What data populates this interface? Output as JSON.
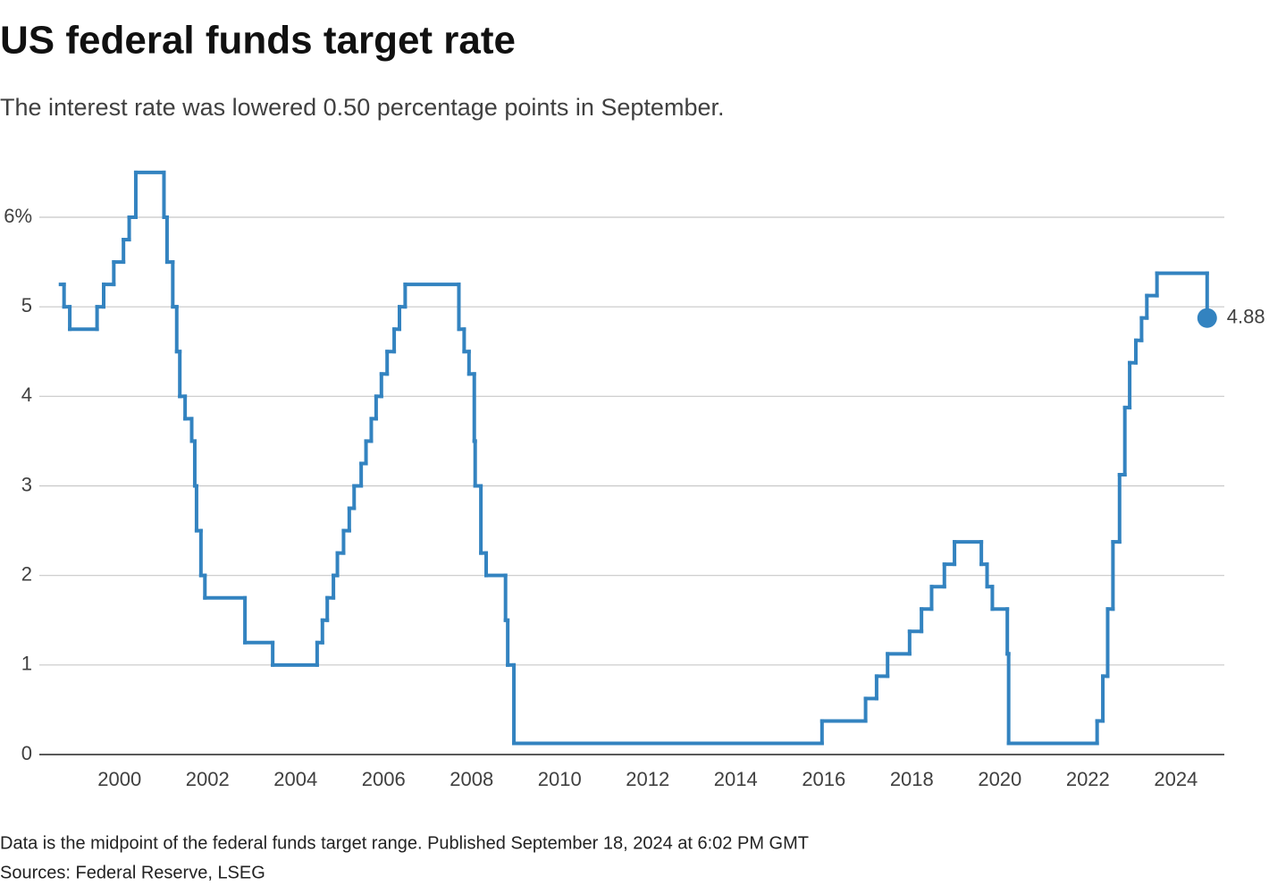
{
  "chart_data": {
    "type": "step",
    "title": "US federal funds target rate",
    "subtitle": "The interest rate was lowered 0.50 percentage points in September.",
    "note": "Data is the midpoint of the federal funds target range. Published September 18, 2024 at 6:02 PM GMT",
    "source": "Sources: Federal Reserve, LSEG",
    "color": "#3383c0",
    "grid": true,
    "xlim": [
      1998.3,
      2025.1
    ],
    "xticks": [
      2000,
      2002,
      2004,
      2006,
      2008,
      2010,
      2012,
      2014,
      2016,
      2018,
      2020,
      2022,
      2024
    ],
    "ylim": [
      0,
      6.5
    ],
    "yticks": [
      0,
      1,
      2,
      3,
      4,
      5,
      {
        "value": 6,
        "label": "6%"
      }
    ],
    "x": [
      1998.66,
      1998.74,
      1998.87,
      1999.49,
      1999.64,
      1999.87,
      2000.09,
      2000.22,
      2000.37,
      2001.01,
      2001.08,
      2001.21,
      2001.3,
      2001.37,
      2001.49,
      2001.64,
      2001.71,
      2001.75,
      2001.85,
      2001.94,
      2002.85,
      2003.48,
      2004.49,
      2004.61,
      2004.72,
      2004.86,
      2004.95,
      2005.09,
      2005.22,
      2005.33,
      2005.49,
      2005.6,
      2005.72,
      2005.83,
      2005.95,
      2006.08,
      2006.24,
      2006.36,
      2006.49,
      2007.71,
      2007.83,
      2007.94,
      2008.06,
      2008.08,
      2008.21,
      2008.33,
      2008.77,
      2008.82,
      2008.96,
      2015.96,
      2016.95,
      2017.2,
      2017.45,
      2017.95,
      2018.22,
      2018.45,
      2018.74,
      2018.97,
      2019.58,
      2019.71,
      2019.83,
      2020.17,
      2020.2,
      2022.21,
      2022.34,
      2022.45,
      2022.57,
      2022.72,
      2022.84,
      2022.95,
      2023.09,
      2023.22,
      2023.34,
      2023.57,
      2024.71
    ],
    "values": [
      5.25,
      5.0,
      4.75,
      5.0,
      5.25,
      5.5,
      5.75,
      6.0,
      6.5,
      6.0,
      5.5,
      5.0,
      4.5,
      4.0,
      3.75,
      3.5,
      3.0,
      2.5,
      2.0,
      1.75,
      1.25,
      1.0,
      1.25,
      1.5,
      1.75,
      2.0,
      2.25,
      2.5,
      2.75,
      3.0,
      3.25,
      3.5,
      3.75,
      4.0,
      4.25,
      4.5,
      4.75,
      5.0,
      5.25,
      4.75,
      4.5,
      4.25,
      3.5,
      3.0,
      2.25,
      2.0,
      1.5,
      1.0,
      0.125,
      0.375,
      0.625,
      0.875,
      1.125,
      1.375,
      1.625,
      1.875,
      2.125,
      2.375,
      2.125,
      1.875,
      1.625,
      1.125,
      0.125,
      0.375,
      0.875,
      1.625,
      2.375,
      3.125,
      3.875,
      4.375,
      4.625,
      4.875,
      5.125,
      5.375,
      4.875
    ],
    "value_labels": [
      null,
      null,
      null,
      null,
      null,
      null,
      null,
      null,
      null,
      null,
      null,
      null,
      null,
      null,
      null,
      null,
      null,
      null,
      null,
      null,
      null,
      null,
      null,
      null,
      null,
      null,
      null,
      null,
      null,
      null,
      null,
      null,
      null,
      null,
      null,
      null,
      null,
      null,
      null,
      null,
      null,
      null,
      null,
      null,
      null,
      null,
      null,
      null,
      null,
      null,
      null,
      null,
      null,
      null,
      null,
      null,
      null,
      null,
      null,
      null,
      null,
      null,
      null,
      null,
      null,
      null,
      null,
      null,
      null,
      null,
      null,
      null,
      null,
      null,
      "4.88"
    ]
  }
}
